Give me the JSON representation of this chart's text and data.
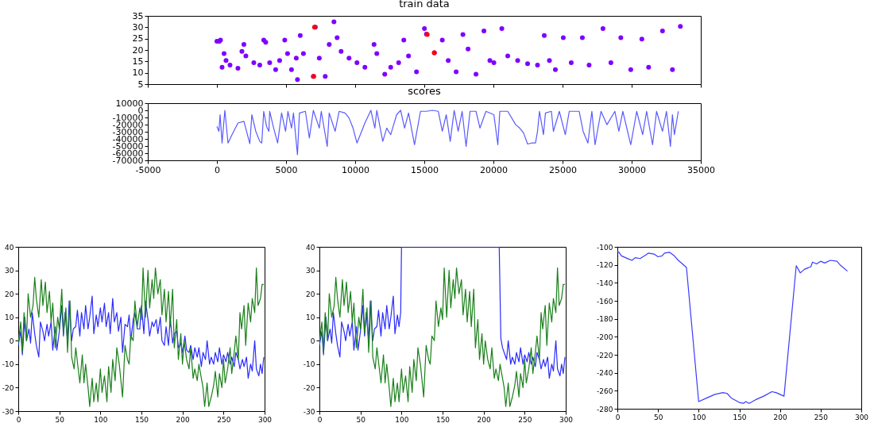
{
  "chart_data": [
    {
      "type": "scatter",
      "title": "train data",
      "marker": "circle",
      "tick_labels": "y",
      "xlim": [
        -5000,
        35000
      ],
      "xticks": [
        -5000,
        0,
        5000,
        10000,
        15000,
        20000,
        25000,
        30000,
        35000
      ],
      "ylim": [
        5,
        35
      ],
      "yticks": [
        5,
        10,
        15,
        20,
        25,
        30,
        35
      ],
      "series": [
        {
          "color": "#7f00ff",
          "x": [
            0,
            172,
            258,
            373,
            517,
            660,
            947,
            1521,
            1808,
            1952,
            2095,
            2669,
            3100,
            3387,
            3530,
            3817,
            4248,
            4535,
            4908,
            5109,
            5396,
            5826,
            5740,
            6027,
            6257,
            6974,
            7118,
            7405,
            7835,
            8122,
            8467,
            8696,
            8983,
            9557,
            10131,
            10705,
            11365,
            11566,
            12140,
            12571,
            13145,
            13518,
            13862,
            14436,
            15010,
            15154,
            15728,
            16302,
            16732,
            17306,
            17794,
            18167,
            18741,
            19315,
            19746,
            20033,
            20607,
            21037,
            21755,
            22472,
            23190,
            23678,
            24051,
            24481,
            25055,
            25629,
            26433,
            26921,
            27925,
            28499,
            29217,
            29934,
            30738,
            31226,
            32230,
            32948,
            33522
          ],
          "values": [
            23.8,
            23.8,
            24.4,
            12.4,
            18.4,
            15.4,
            13.4,
            12,
            19.4,
            22.4,
            17.4,
            14.4,
            13.4,
            24.4,
            23.4,
            14.4,
            11.4,
            15.4,
            24.4,
            18.4,
            11.4,
            7,
            16.4,
            26.4,
            18.4,
            8.4,
            30,
            16.4,
            8.4,
            22.4,
            32.4,
            25.4,
            19.4,
            16.4,
            14.4,
            12.4,
            22.4,
            18.4,
            9.4,
            12.4,
            14.4,
            24.4,
            17.4,
            10.4,
            29.4,
            27,
            18.8,
            24.4,
            15.4,
            10.4,
            26.8,
            20.4,
            9.4,
            28.4,
            15.4,
            14.4,
            29.4,
            17.4,
            15.4,
            14,
            13.4,
            26.4,
            15.4,
            11.4,
            25.4,
            14.4,
            25.4,
            13.4,
            29.4,
            14.4,
            25.4,
            11.4,
            24.8,
            12.4,
            28.4,
            11.4,
            30.4
          ]
        },
        {
          "color": "#ff0000",
          "x": [
            7003,
            7060,
            15211,
            15728
          ],
          "values": [
            8.4,
            30,
            26.8,
            18.8
          ]
        }
      ]
    },
    {
      "type": "line",
      "title": "scores",
      "xlim": [
        -5000,
        35000
      ],
      "xticks": [
        -5000,
        0,
        5000,
        10000,
        15000,
        20000,
        25000,
        30000,
        35000
      ],
      "ylim": [
        -70000,
        10000
      ],
      "yticks": [
        -70000,
        -60000,
        -50000,
        -40000,
        -30000,
        -20000,
        -10000,
        0,
        10000
      ],
      "series": [
        {
          "color": "#5a5aff",
          "x": [
            0,
            144,
            230,
            373,
            574,
            804,
            1091,
            1521,
            1952,
            2382,
            2526,
            2813,
            3100,
            3243,
            3387,
            3588,
            3760,
            3817,
            4104,
            4391,
            4678,
            4965,
            5137,
            5396,
            5539,
            5826,
            5970,
            6400,
            6687,
            6974,
            7405,
            7548,
            7979,
            8122,
            8553,
            8840,
            9270,
            9557,
            9844,
            10131,
            10705,
            11136,
            11423,
            11566,
            11997,
            12284,
            12571,
            13001,
            13288,
            13575,
            13862,
            14293,
            14723,
            15154,
            15584,
            16015,
            16302,
            16589,
            16876,
            17163,
            17450,
            17737,
            18024,
            18311,
            18741,
            19028,
            19459,
            20033,
            20320,
            20463,
            21037,
            21611,
            21898,
            22185,
            22472,
            22759,
            23046,
            23190,
            23333,
            23620,
            23764,
            24194,
            24338,
            24768,
            25199,
            25486,
            26203,
            26490,
            26835,
            27122,
            27351,
            27782,
            28212,
            28786,
            29073,
            29360,
            29934,
            30365,
            30795,
            31082,
            31513,
            31800,
            32230,
            32517,
            32804,
            32948,
            33091,
            33378
          ],
          "values": [
            -22400,
            -29400,
            -6100,
            -45800,
            0,
            -45800,
            -34100,
            -17800,
            -15400,
            -46700,
            -6100,
            -29400,
            -43500,
            -45800,
            -1400,
            -22400,
            -29400,
            -1400,
            -24800,
            -45800,
            -3700,
            -29400,
            -1400,
            -24800,
            -3700,
            -62100,
            -3700,
            -1400,
            -38800,
            0,
            -24800,
            -1400,
            -50500,
            -3700,
            -29400,
            -1400,
            -3700,
            -10700,
            -24800,
            -45800,
            -17800,
            0,
            -24800,
            0,
            -43500,
            -24800,
            -34100,
            -6100,
            0,
            -24800,
            -3700,
            -48100,
            -1400,
            -1400,
            0,
            -1400,
            -29400,
            -6100,
            -43500,
            0,
            -29400,
            -1400,
            -50500,
            -1400,
            -1400,
            -24800,
            -1400,
            -6100,
            -48100,
            -1400,
            -1400,
            -20100,
            -24800,
            -31800,
            -47200,
            -45800,
            -45800,
            -29400,
            -1400,
            -34100,
            -3700,
            -1400,
            -29400,
            -1400,
            -34100,
            -1400,
            -1400,
            -29400,
            -45800,
            -1400,
            -48100,
            -1400,
            -20100,
            -1400,
            -29400,
            -1400,
            -48100,
            -1400,
            -34100,
            -1400,
            -48100,
            -1400,
            -29400,
            -1400,
            -50500,
            -6100,
            -34100,
            -1400
          ]
        }
      ]
    },
    {
      "type": "line",
      "xlim": [
        0,
        300
      ],
      "xticks": [
        0,
        50,
        100,
        150,
        200,
        250,
        300
      ],
      "ylim": [
        -30,
        40
      ],
      "yticks": [
        -30,
        -20,
        -10,
        0,
        10,
        20,
        30,
        40
      ],
      "series": [
        {
          "color": "#2a2aff",
          "x": [
            0,
            3,
            5,
            8,
            10,
            13,
            15,
            17,
            20,
            22,
            25,
            27,
            30,
            32,
            35,
            37,
            40,
            42,
            45,
            47,
            50,
            53,
            55,
            57,
            60,
            62,
            65,
            67,
            70,
            72,
            75,
            77,
            80,
            82,
            85,
            87,
            90,
            92,
            95,
            97,
            100,
            102,
            105,
            107,
            110,
            112,
            115,
            117,
            120,
            122,
            125,
            127,
            130,
            133,
            135,
            137,
            140,
            142,
            145,
            148,
            150,
            153,
            155,
            158,
            160,
            163,
            165,
            168,
            170,
            173,
            175,
            178,
            180,
            183,
            185,
            188,
            190,
            193,
            195,
            198,
            200,
            203,
            205,
            208,
            210,
            213,
            215,
            218,
            220,
            223,
            225,
            228,
            230,
            233,
            235,
            238,
            240,
            243,
            245,
            248,
            250,
            253,
            255,
            258,
            260,
            263,
            265,
            268,
            270,
            273,
            275,
            278,
            280,
            283,
            285,
            288,
            290,
            293,
            295,
            297,
            299
          ],
          "values": [
            -2,
            4,
            -6,
            10,
            0,
            5,
            -1,
            12,
            3,
            -2,
            -7,
            8,
            4,
            0,
            7,
            2,
            8,
            -4,
            6,
            -4,
            4,
            15,
            2,
            12,
            0,
            17,
            0,
            5,
            6,
            13,
            2,
            12,
            5,
            15,
            5,
            10,
            19,
            3,
            11,
            6,
            14,
            8,
            16,
            6,
            12,
            3,
            18,
            8,
            12,
            4,
            10,
            -5,
            7,
            6,
            11,
            0,
            9,
            12,
            5,
            5,
            15,
            3,
            17,
            9,
            2,
            8,
            6,
            9,
            3,
            10,
            0,
            -2,
            6,
            -2,
            10,
            -1,
            3,
            4,
            -3,
            -1,
            -5,
            2,
            -4,
            -5,
            -2,
            -8,
            -3,
            -7,
            -3,
            -11,
            -5,
            -8,
            0,
            -10,
            -7,
            -10,
            -5,
            -9,
            -3,
            -10,
            -6,
            -9,
            -5,
            -10,
            -7,
            -11,
            -5,
            -8,
            -12,
            -8,
            -11,
            -7,
            -16,
            -10,
            -13,
            0,
            -12,
            -15,
            -10,
            -14,
            -7
          ]
        },
        {
          "color": "#1a801a",
          "x": [
            0,
            3,
            5,
            7,
            10,
            12,
            15,
            18,
            20,
            22,
            25,
            28,
            30,
            33,
            35,
            38,
            40,
            42,
            45,
            48,
            50,
            53,
            55,
            58,
            60,
            63,
            65,
            68,
            70,
            73,
            75,
            78,
            80,
            82,
            85,
            87,
            90,
            92,
            95,
            97,
            100,
            102,
            105,
            108,
            110,
            113,
            115,
            118,
            120,
            123,
            127,
            130,
            133,
            135,
            137,
            140,
            142,
            145,
            148,
            150,
            152,
            155,
            158,
            160,
            163,
            165,
            167,
            170,
            173,
            175,
            178,
            180,
            183,
            185,
            188,
            190,
            193,
            195,
            198,
            200,
            202,
            205,
            208,
            210,
            213,
            215,
            218,
            220,
            223,
            225,
            227,
            230,
            232,
            235,
            238,
            240,
            243,
            245,
            248,
            250,
            252,
            255,
            258,
            260,
            263,
            265,
            268,
            270,
            272,
            275,
            277,
            280,
            283,
            285,
            288,
            290,
            292,
            295,
            297,
            299
          ],
          "values": [
            -1,
            8,
            -5,
            12,
            0,
            20,
            10,
            15,
            27,
            18,
            10,
            26,
            15,
            25,
            12,
            21,
            8,
            16,
            -3,
            10,
            5,
            22,
            3,
            14,
            -5,
            17,
            -7,
            -12,
            -3,
            -12,
            -18,
            -6,
            -18,
            -10,
            -20,
            -28,
            -16,
            -26,
            -18,
            -26,
            -12,
            -22,
            -15,
            -26,
            -11,
            -22,
            -8,
            -17,
            -3,
            -10,
            -24,
            -2,
            -8,
            -10,
            2,
            0,
            17,
            6,
            14,
            9,
            31,
            10,
            30,
            14,
            26,
            18,
            31,
            20,
            26,
            11,
            22,
            8,
            21,
            6,
            22,
            -3,
            9,
            -8,
            3,
            -10,
            0,
            -8,
            -12,
            -3,
            -16,
            -12,
            -17,
            -10,
            -16,
            -20,
            -28,
            -18,
            -28,
            -24,
            -19,
            -13,
            -24,
            -14,
            -20,
            -8,
            -18,
            -12,
            -3,
            -14,
            -5,
            2,
            -8,
            12,
            5,
            15,
            -2,
            16,
            8,
            18,
            12,
            31,
            15,
            18,
            24,
            24
          ]
        }
      ]
    },
    {
      "type": "line",
      "xlim": [
        0,
        300
      ],
      "xticks": [
        0,
        50,
        100,
        150,
        200,
        250,
        300
      ],
      "ylim": [
        -30,
        40
      ],
      "yticks": [
        -30,
        -20,
        -10,
        0,
        10,
        20,
        30,
        40
      ],
      "series": [
        {
          "color": "#2a2aff",
          "x": [
            0,
            3,
            5,
            8,
            10,
            13,
            15,
            17,
            20,
            22,
            25,
            27,
            30,
            32,
            35,
            37,
            40,
            42,
            45,
            47,
            50,
            53,
            55,
            57,
            60,
            62,
            65,
            67,
            70,
            72,
            75,
            77,
            80,
            82,
            85,
            87,
            90,
            92,
            95,
            97,
            99,
            100,
            219,
            221,
            223,
            225,
            228,
            230,
            233,
            235,
            238,
            240,
            243,
            245,
            248,
            250,
            253,
            255,
            258,
            260,
            263,
            265,
            268,
            270,
            273,
            275,
            278,
            280,
            283,
            285,
            288,
            290,
            293,
            295,
            297,
            299
          ],
          "values": [
            -2,
            4,
            -6,
            10,
            0,
            5,
            -1,
            12,
            3,
            -2,
            -7,
            8,
            4,
            0,
            7,
            2,
            8,
            -4,
            6,
            -4,
            4,
            15,
            2,
            12,
            0,
            17,
            0,
            5,
            6,
            13,
            2,
            12,
            5,
            15,
            5,
            10,
            19,
            3,
            11,
            6,
            12,
            40,
            40,
            1,
            -3,
            -5,
            -8,
            0,
            -10,
            -7,
            -10,
            -5,
            -9,
            -3,
            -10,
            -6,
            -9,
            -5,
            -10,
            -7,
            -11,
            -5,
            -8,
            -12,
            -8,
            -11,
            -7,
            -16,
            -10,
            -13,
            0,
            -12,
            -15,
            -10,
            -14,
            -7
          ]
        },
        {
          "color": "#1a801a",
          "x": [
            0,
            3,
            5,
            7,
            10,
            12,
            15,
            18,
            20,
            22,
            25,
            28,
            30,
            33,
            35,
            38,
            40,
            42,
            45,
            48,
            50,
            53,
            55,
            58,
            60,
            63,
            65,
            68,
            70,
            73,
            75,
            78,
            80,
            82,
            85,
            87,
            90,
            92,
            95,
            97,
            100,
            102,
            105,
            108,
            110,
            113,
            115,
            118,
            120,
            123,
            127,
            130,
            133,
            135,
            137,
            140,
            142,
            145,
            148,
            150,
            152,
            155,
            158,
            160,
            163,
            165,
            167,
            170,
            173,
            175,
            178,
            180,
            183,
            185,
            188,
            190,
            193,
            195,
            198,
            200,
            202,
            205,
            208,
            210,
            213,
            215,
            218,
            220,
            223,
            225,
            227,
            230,
            232,
            235,
            238,
            240,
            243,
            245,
            248,
            250,
            252,
            255,
            258,
            260,
            263,
            265,
            268,
            270,
            272,
            275,
            277,
            280,
            283,
            285,
            288,
            290,
            292,
            295,
            297,
            299
          ],
          "values": [
            -1,
            8,
            -5,
            12,
            0,
            20,
            10,
            15,
            27,
            18,
            10,
            26,
            15,
            25,
            12,
            21,
            8,
            16,
            -3,
            10,
            5,
            22,
            3,
            14,
            -5,
            17,
            -7,
            -12,
            -3,
            -12,
            -18,
            -6,
            -18,
            -10,
            -20,
            -28,
            -16,
            -26,
            -18,
            -26,
            -12,
            -22,
            -15,
            -26,
            -11,
            -22,
            -8,
            -17,
            -3,
            -10,
            -24,
            -2,
            -8,
            -10,
            2,
            0,
            17,
            6,
            14,
            9,
            31,
            10,
            30,
            14,
            26,
            18,
            31,
            20,
            26,
            11,
            22,
            8,
            21,
            6,
            22,
            -3,
            9,
            -8,
            3,
            -10,
            0,
            -8,
            -12,
            -3,
            -16,
            -12,
            -17,
            -10,
            -16,
            -20,
            -28,
            -18,
            -28,
            -24,
            -19,
            -13,
            -24,
            -14,
            -20,
            -8,
            -18,
            -12,
            -3,
            -14,
            -5,
            2,
            -8,
            12,
            5,
            15,
            -2,
            16,
            8,
            18,
            12,
            31,
            15,
            18,
            24,
            24
          ]
        }
      ]
    },
    {
      "type": "line",
      "xlim": [
        0,
        300
      ],
      "xticks": [
        0,
        50,
        100,
        150,
        200,
        250,
        300
      ],
      "ylim": [
        -280,
        -100
      ],
      "yticks": [
        -280,
        -260,
        -240,
        -220,
        -200,
        -180,
        -160,
        -140,
        -120,
        -100
      ],
      "series": [
        {
          "color": "#3a3aff",
          "x": [
            0,
            2,
            5,
            10,
            15,
            18,
            22,
            28,
            35,
            38,
            45,
            50,
            55,
            58,
            64,
            70,
            75,
            80,
            85,
            100,
            110,
            120,
            130,
            135,
            140,
            150,
            155,
            158,
            162,
            170,
            180,
            190,
            195,
            205,
            220,
            225,
            230,
            238,
            240,
            245,
            250,
            255,
            262,
            270,
            275,
            283
          ],
          "values": [
            -105,
            -106,
            -110,
            -112,
            -114,
            -115,
            -112,
            -113,
            -109,
            -107,
            -108,
            -111,
            -110,
            -107,
            -106,
            -110,
            -115,
            -119,
            -123,
            -272,
            -268,
            -264,
            -262,
            -263,
            -268,
            -273,
            -274,
            -272,
            -274,
            -270,
            -266,
            -261,
            -262,
            -266,
            -121,
            -129,
            -125,
            -122,
            -117,
            -119,
            -116,
            -118,
            -115,
            -116,
            -121,
            -127
          ]
        }
      ]
    }
  ]
}
